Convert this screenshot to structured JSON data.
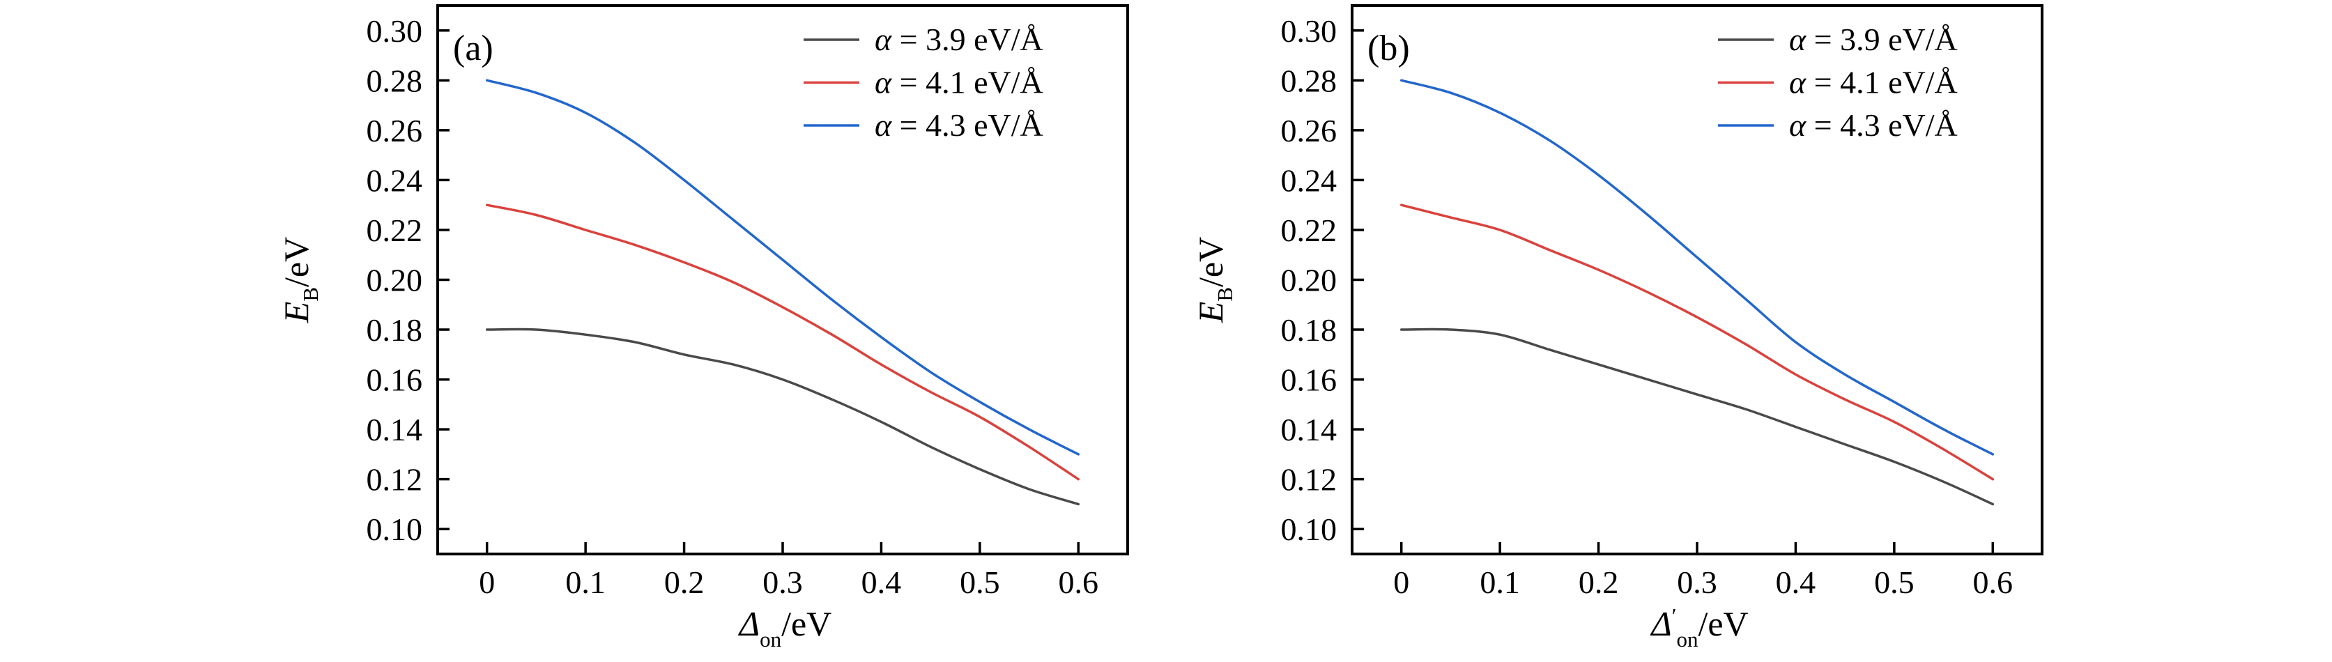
{
  "figure": {
    "background": "#ffffff",
    "text_color": "#000000",
    "spine_color": "#000000"
  },
  "legend_shared": {
    "alpha_symbol": "α",
    "equals": " = ",
    "unit_suffix": " eV/Å",
    "position": "top-right",
    "frame": false
  },
  "chart_data": [
    {
      "type": "line",
      "panel_label": "(a)",
      "xlabel": {
        "symbol": "Δ",
        "prime": "",
        "subscript": "on",
        "suffix": "/eV",
        "full": "Δon/eV"
      },
      "ylabel": {
        "symbol": "E",
        "subscript": "B",
        "suffix": "/eV",
        "full": "EB/eV"
      },
      "xlim": [
        -0.05,
        0.65
      ],
      "ylim": [
        0.09,
        0.31
      ],
      "grid": false,
      "xticks": [
        0,
        0.1,
        0.2,
        0.3,
        0.4,
        0.5,
        0.6
      ],
      "xtick_labels": [
        "0",
        "0.1",
        "0.2",
        "0.3",
        "0.4",
        "0.5",
        "0.6"
      ],
      "yticks": [
        0.1,
        0.12,
        0.14,
        0.16,
        0.18,
        0.2,
        0.22,
        0.24,
        0.26,
        0.28,
        0.3
      ],
      "ytick_labels": [
        "0.10",
        "0.12",
        "0.14",
        "0.16",
        "0.18",
        "0.20",
        "0.22",
        "0.24",
        "0.26",
        "0.28",
        "0.30"
      ],
      "x": [
        0,
        0.05,
        0.1,
        0.15,
        0.2,
        0.25,
        0.3,
        0.35,
        0.4,
        0.45,
        0.5,
        0.55,
        0.6
      ],
      "series": [
        {
          "name": "α = 3.9 eV/Å",
          "alpha_value": "3.9",
          "color": "#4a4a4a",
          "values": [
            0.18,
            0.18,
            0.178,
            0.175,
            0.17,
            0.166,
            0.16,
            0.152,
            0.143,
            0.133,
            0.124,
            0.116,
            0.11
          ]
        },
        {
          "name": "α = 4.1 eV/Å",
          "alpha_value": "4.1",
          "color": "#da423d",
          "values": [
            0.23,
            0.226,
            0.22,
            0.214,
            0.207,
            0.199,
            0.189,
            0.178,
            0.166,
            0.155,
            0.145,
            0.133,
            0.12
          ]
        },
        {
          "name": "α = 4.3 eV/Å",
          "alpha_value": "4.3",
          "color": "#2367cb",
          "values": [
            0.28,
            0.275,
            0.267,
            0.255,
            0.24,
            0.224,
            0.208,
            0.192,
            0.177,
            0.163,
            0.151,
            0.14,
            0.13
          ]
        }
      ]
    },
    {
      "type": "line",
      "panel_label": "(b)",
      "xlabel": {
        "symbol": "Δ",
        "prime": "′",
        "subscript": "on",
        "suffix": "/eV",
        "full": "Δ′on/eV"
      },
      "ylabel": {
        "symbol": "E",
        "subscript": "B",
        "suffix": "/eV",
        "full": "EB/eV"
      },
      "xlim": [
        -0.05,
        0.65
      ],
      "ylim": [
        0.09,
        0.31
      ],
      "grid": false,
      "xticks": [
        0,
        0.1,
        0.2,
        0.3,
        0.4,
        0.5,
        0.6
      ],
      "xtick_labels": [
        "0",
        "0.1",
        "0.2",
        "0.3",
        "0.4",
        "0.5",
        "0.6"
      ],
      "yticks": [
        0.1,
        0.12,
        0.14,
        0.16,
        0.18,
        0.2,
        0.22,
        0.24,
        0.26,
        0.28,
        0.3
      ],
      "ytick_labels": [
        "0.10",
        "0.12",
        "0.14",
        "0.16",
        "0.18",
        "0.20",
        "0.22",
        "0.24",
        "0.26",
        "0.28",
        "0.30"
      ],
      "x": [
        0,
        0.05,
        0.1,
        0.15,
        0.2,
        0.25,
        0.3,
        0.35,
        0.4,
        0.45,
        0.5,
        0.55,
        0.6
      ],
      "series": [
        {
          "name": "α = 3.9 eV/Å",
          "alpha_value": "3.9",
          "color": "#4a4a4a",
          "values": [
            0.18,
            0.18,
            0.178,
            0.172,
            0.166,
            0.16,
            0.154,
            0.148,
            0.141,
            0.134,
            0.127,
            0.119,
            0.11
          ]
        },
        {
          "name": "α = 4.1 eV/Å",
          "alpha_value": "4.1",
          "color": "#da423d",
          "values": [
            0.23,
            0.225,
            0.22,
            0.212,
            0.204,
            0.195,
            0.185,
            0.174,
            0.162,
            0.152,
            0.143,
            0.132,
            0.12
          ]
        },
        {
          "name": "α = 4.3 eV/Å",
          "alpha_value": "4.3",
          "color": "#2367cb",
          "values": [
            0.28,
            0.275,
            0.267,
            0.256,
            0.242,
            0.226,
            0.209,
            0.192,
            0.175,
            0.162,
            0.151,
            0.14,
            0.13
          ]
        }
      ]
    }
  ]
}
